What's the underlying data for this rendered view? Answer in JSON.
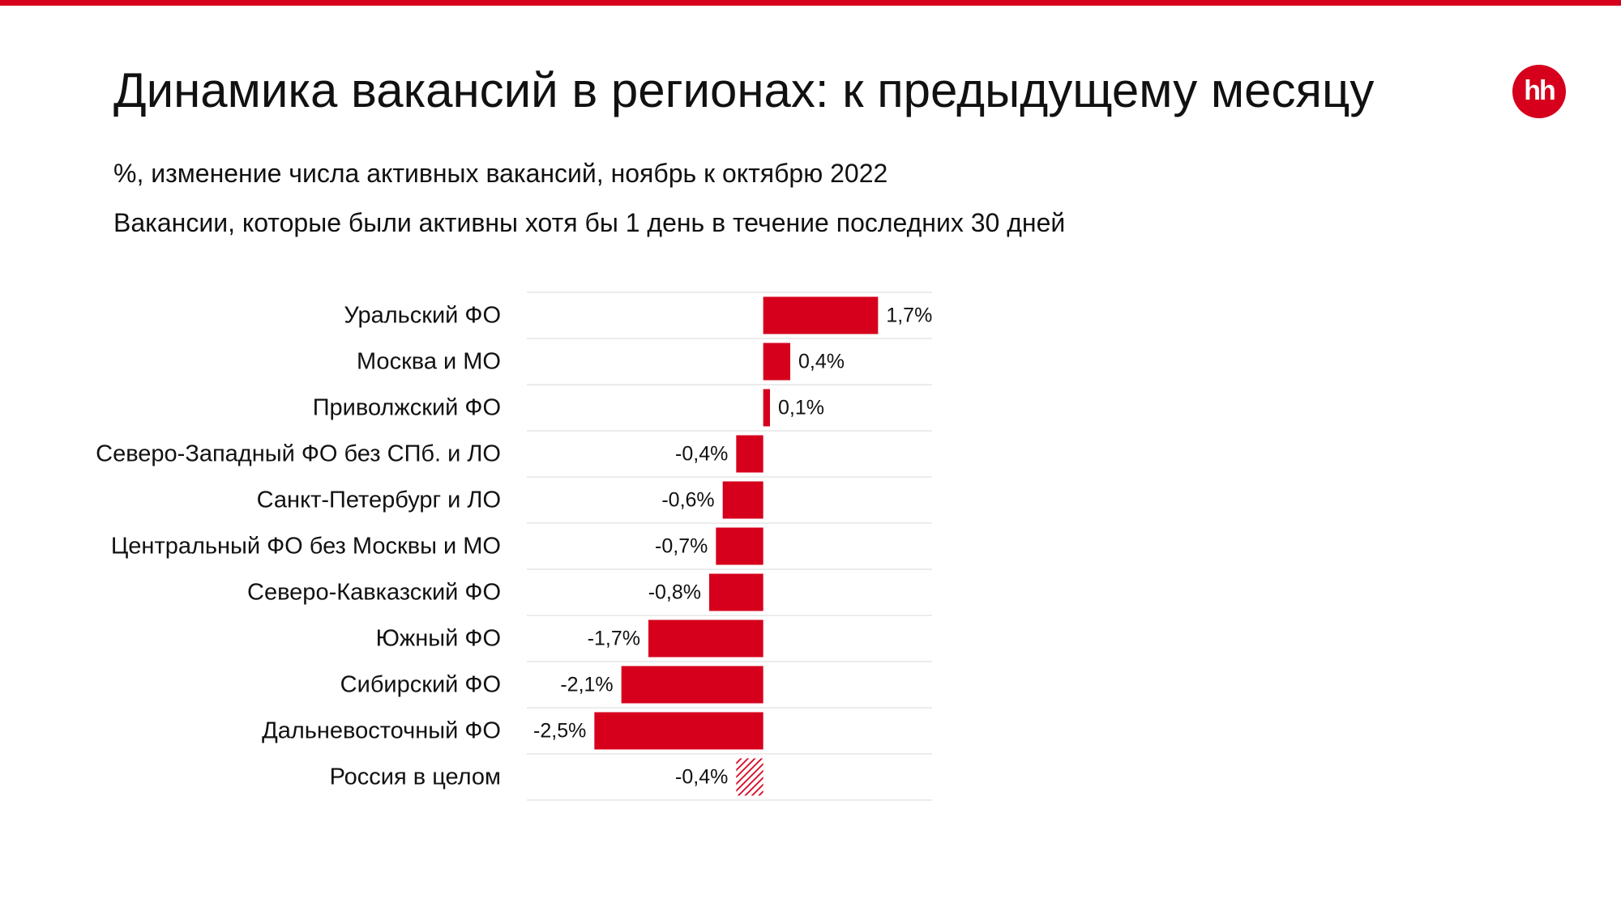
{
  "header": {
    "title": "Динамика вакансий в регионах: к предыдущему месяцу",
    "subtitle_1": "%, изменение числа активных вакансий, ноябрь к октябрю 2022",
    "subtitle_2": "Вакансии, которые были активны хотя бы 1 день в течение последних 30 дней",
    "logo_text": "hh"
  },
  "colors": {
    "accent": "#d6001c",
    "gridline": "#e6e6e6"
  },
  "chart_data": {
    "type": "bar",
    "orientation": "horizontal",
    "categories": [
      "Уральский ФО",
      "Москва и МО",
      "Приволжский ФО",
      "Северо-Западный ФО без СПб. и ЛО",
      "Санкт-Петербург и ЛО",
      "Центральный ФО без Москвы и МО",
      "Северо-Кавказский ФО",
      "Южный ФО",
      "Сибирский ФО",
      "Дальневосточный ФО",
      "Россия в целом"
    ],
    "values": [
      1.7,
      0.4,
      0.1,
      -0.4,
      -0.6,
      -0.7,
      -0.8,
      -1.7,
      -2.1,
      -2.5,
      -0.4
    ],
    "labels": [
      "1,7%",
      "0,4%",
      "0,1%",
      "-0,4%",
      "-0,6%",
      "-0,7%",
      "-0,8%",
      "-1,7%",
      "-2,1%",
      "-2,5%",
      "-0,4%"
    ],
    "hatched": [
      false,
      false,
      false,
      false,
      false,
      false,
      false,
      false,
      false,
      false,
      true
    ],
    "xlim": [
      -3.5,
      2.5
    ],
    "grid": true
  }
}
